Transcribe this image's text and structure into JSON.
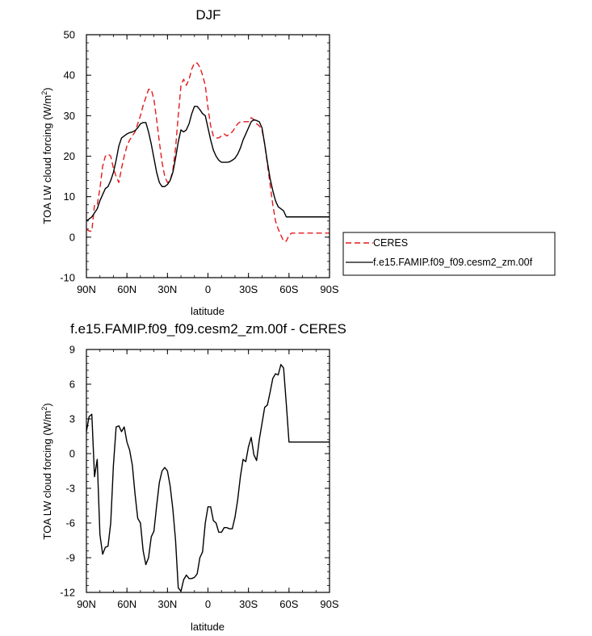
{
  "chart_data": [
    {
      "type": "line",
      "title": "DJF",
      "xlabel": "latitude",
      "ylabel": "TOA LW cloud forcing (W/m",
      "ylabel_sup": "2",
      "ylabel_close": ")",
      "xlim": [
        90,
        -90
      ],
      "ylim": [
        -10,
        50
      ],
      "x_ticks": [
        90,
        60,
        30,
        0,
        -30,
        -60,
        -90
      ],
      "x_tick_labels": [
        "90N",
        "60N",
        "30N",
        "0",
        "30S",
        "60S",
        "90S"
      ],
      "y_ticks": [
        -10,
        0,
        10,
        20,
        30,
        40,
        50
      ],
      "y_tick_labels": [
        "-10",
        "0",
        "10",
        "20",
        "30",
        "40",
        "50"
      ],
      "grid": false,
      "legend_position": "right",
      "series": [
        {
          "name": "CERES",
          "color": "#e41a1c",
          "style": "dashed",
          "x": [
            90,
            88,
            86,
            84,
            82,
            80,
            78,
            76,
            74,
            72,
            70,
            68,
            66,
            64,
            62,
            60,
            58,
            56,
            54,
            52,
            50,
            48,
            46,
            44,
            42,
            40,
            38,
            36,
            34,
            32,
            30,
            28,
            26,
            24,
            22,
            20,
            18,
            16,
            14,
            12,
            10,
            8,
            6,
            4,
            2,
            0,
            -2,
            -4,
            -6,
            -8,
            -10,
            -12,
            -14,
            -16,
            -18,
            -20,
            -22,
            -24,
            -26,
            -28,
            -30,
            -32,
            -34,
            -36,
            -38,
            -40,
            -42,
            -44,
            -46,
            -48,
            -50,
            -52,
            -54,
            -56,
            -58,
            -60,
            -62,
            -64,
            -66,
            -68,
            -70,
            -72,
            -74,
            -76,
            -78,
            -80,
            -82,
            -84,
            -86,
            -88,
            -90
          ],
          "values": [
            2.0,
            1.5,
            1.5,
            8.0,
            8.0,
            12.0,
            17.5,
            20.0,
            20.5,
            20.0,
            17.0,
            15.0,
            13.5,
            17.0,
            20.0,
            22.5,
            24.0,
            25.0,
            26.0,
            28.0,
            30.0,
            32.5,
            34.5,
            36.5,
            36.5,
            34.0,
            29.0,
            23.5,
            18.5,
            15.0,
            13.5,
            14.0,
            16.5,
            22.0,
            30.0,
            37.5,
            39.0,
            37.5,
            39.0,
            41.5,
            43.0,
            43.0,
            42.0,
            40.0,
            37.5,
            32.0,
            27.5,
            25.0,
            24.5,
            24.5,
            25.0,
            25.5,
            25.0,
            25.5,
            26.0,
            27.0,
            28.0,
            28.5,
            28.5,
            28.5,
            28.5,
            29.5,
            29.0,
            28.0,
            27.5,
            26.5,
            23.0,
            18.0,
            13.0,
            8.0,
            4.0,
            2.0,
            0.5,
            -1.0,
            -1.0,
            0.5,
            1.0,
            1.0,
            1.0,
            1.0,
            1.0,
            1.0,
            1.0,
            1.0,
            1.0,
            1.0,
            1.0,
            1.0,
            1.0,
            1.0,
            1.0
          ]
        },
        {
          "name": "f.e15.FAMIP.f09_f09.cesm2_zm.00f",
          "color": "#000000",
          "style": "solid",
          "x": [
            90,
            88,
            86,
            84,
            82,
            80,
            78,
            76,
            74,
            72,
            70,
            68,
            66,
            64,
            62,
            60,
            58,
            56,
            54,
            52,
            50,
            48,
            46,
            44,
            42,
            40,
            38,
            36,
            34,
            32,
            30,
            28,
            26,
            24,
            22,
            20,
            18,
            16,
            14,
            12,
            10,
            8,
            6,
            4,
            2,
            0,
            -2,
            -4,
            -6,
            -8,
            -10,
            -12,
            -14,
            -16,
            -18,
            -20,
            -22,
            -24,
            -26,
            -28,
            -30,
            -32,
            -34,
            -36,
            -38,
            -40,
            -42,
            -44,
            -46,
            -48,
            -50,
            -52,
            -54,
            -56,
            -58,
            -60,
            -62,
            -64,
            -66,
            -68,
            -70,
            -72,
            -74,
            -76,
            -78,
            -80,
            -82,
            -84,
            -86,
            -88,
            -90
          ],
          "values": [
            4.0,
            4.5,
            5.0,
            6.0,
            7.0,
            9.0,
            10.5,
            12.0,
            12.5,
            14.0,
            16.0,
            19.0,
            22.5,
            24.5,
            25.0,
            25.5,
            25.8,
            26.0,
            26.3,
            27.0,
            28.0,
            28.3,
            28.3,
            26.0,
            23.0,
            19.5,
            16.0,
            13.5,
            12.5,
            12.5,
            13.0,
            14.0,
            16.0,
            19.5,
            23.5,
            26.5,
            26.0,
            26.5,
            28.0,
            30.5,
            32.3,
            32.3,
            31.5,
            30.5,
            30.0,
            27.0,
            24.0,
            21.5,
            20.0,
            19.0,
            18.5,
            18.5,
            18.5,
            18.6,
            19.0,
            19.5,
            20.5,
            22.0,
            24.0,
            25.5,
            27.0,
            28.5,
            29.0,
            28.8,
            28.5,
            27.0,
            23.0,
            18.5,
            14.5,
            11.5,
            9.0,
            7.5,
            7.0,
            6.5,
            5.0,
            5.0,
            5.0,
            5.0,
            5.0,
            5.0,
            5.0,
            5.0,
            5.0,
            5.0,
            5.0,
            5.0,
            5.0,
            5.0,
            5.0,
            5.0,
            5.0
          ]
        }
      ]
    },
    {
      "type": "line",
      "title": "f.e15.FAMIP.f09_f09.cesm2_zm.00f - CERES",
      "xlabel": "latitude",
      "ylabel": "TOA LW cloud forcing (W/m",
      "ylabel_sup": "2",
      "ylabel_close": ")",
      "xlim": [
        90,
        -90
      ],
      "ylim": [
        -12,
        9
      ],
      "x_ticks": [
        90,
        60,
        30,
        0,
        -30,
        -60,
        -90
      ],
      "x_tick_labels": [
        "90N",
        "60N",
        "30N",
        "0",
        "30S",
        "60S",
        "90S"
      ],
      "y_ticks": [
        -12,
        -9,
        -6,
        -3,
        0,
        3,
        6,
        9
      ],
      "y_tick_labels": [
        "-12",
        "-9",
        "-6",
        "-3",
        "0",
        "3",
        "6",
        "9"
      ],
      "grid": false,
      "series": [
        {
          "name": "f.e15.FAMIP.f09_f09.cesm2_zm.00f - CERES",
          "color": "#000000",
          "style": "solid",
          "x": [
            90,
            88,
            86,
            84,
            82,
            80,
            78,
            76,
            74,
            72,
            70,
            68,
            66,
            64,
            62,
            60,
            58,
            56,
            54,
            52,
            50,
            48,
            46,
            44,
            42,
            40,
            38,
            36,
            34,
            32,
            30,
            28,
            26,
            24,
            22,
            20,
            18,
            16,
            14,
            12,
            10,
            8,
            6,
            4,
            2,
            0,
            -2,
            -4,
            -6,
            -8,
            -10,
            -12,
            -14,
            -16,
            -18,
            -20,
            -22,
            -24,
            -26,
            -28,
            -30,
            -32,
            -34,
            -36,
            -38,
            -40,
            -42,
            -44,
            -46,
            -48,
            -50,
            -52,
            -54,
            -56,
            -58,
            -60,
            -62,
            -64,
            -66,
            -68,
            -70,
            -72,
            -74,
            -76,
            -78,
            -80,
            -82,
            -84,
            -86,
            -88,
            -90
          ],
          "values": [
            1.9,
            3.2,
            3.4,
            -2.0,
            -0.5,
            -7.0,
            -8.7,
            -8.1,
            -8.0,
            -6.0,
            -1.0,
            2.3,
            2.4,
            1.9,
            2.3,
            1.0,
            0.3,
            -1.0,
            -3.5,
            -5.6,
            -6.0,
            -8.4,
            -9.6,
            -9.0,
            -7.2,
            -6.7,
            -4.5,
            -2.5,
            -1.5,
            -1.2,
            -1.5,
            -2.8,
            -4.8,
            -7.5,
            -11.6,
            -11.9,
            -10.9,
            -10.5,
            -10.8,
            -10.8,
            -10.7,
            -10.4,
            -9.0,
            -8.5,
            -6.0,
            -4.6,
            -4.6,
            -5.8,
            -6.0,
            -6.8,
            -6.8,
            -6.4,
            -6.4,
            -6.5,
            -6.5,
            -5.5,
            -4.0,
            -2.0,
            -0.5,
            -0.7,
            0.6,
            1.4,
            -0.1,
            -0.6,
            1.2,
            2.6,
            4.0,
            4.2,
            5.3,
            6.5,
            6.9,
            6.8,
            7.7,
            7.4,
            4.3,
            1.0,
            1.0,
            1.0,
            1.0,
            1.0,
            1.0,
            1.0,
            1.0,
            1.0,
            1.0,
            1.0,
            1.0,
            1.0,
            1.0,
            1.0,
            1.0
          ]
        }
      ]
    }
  ]
}
